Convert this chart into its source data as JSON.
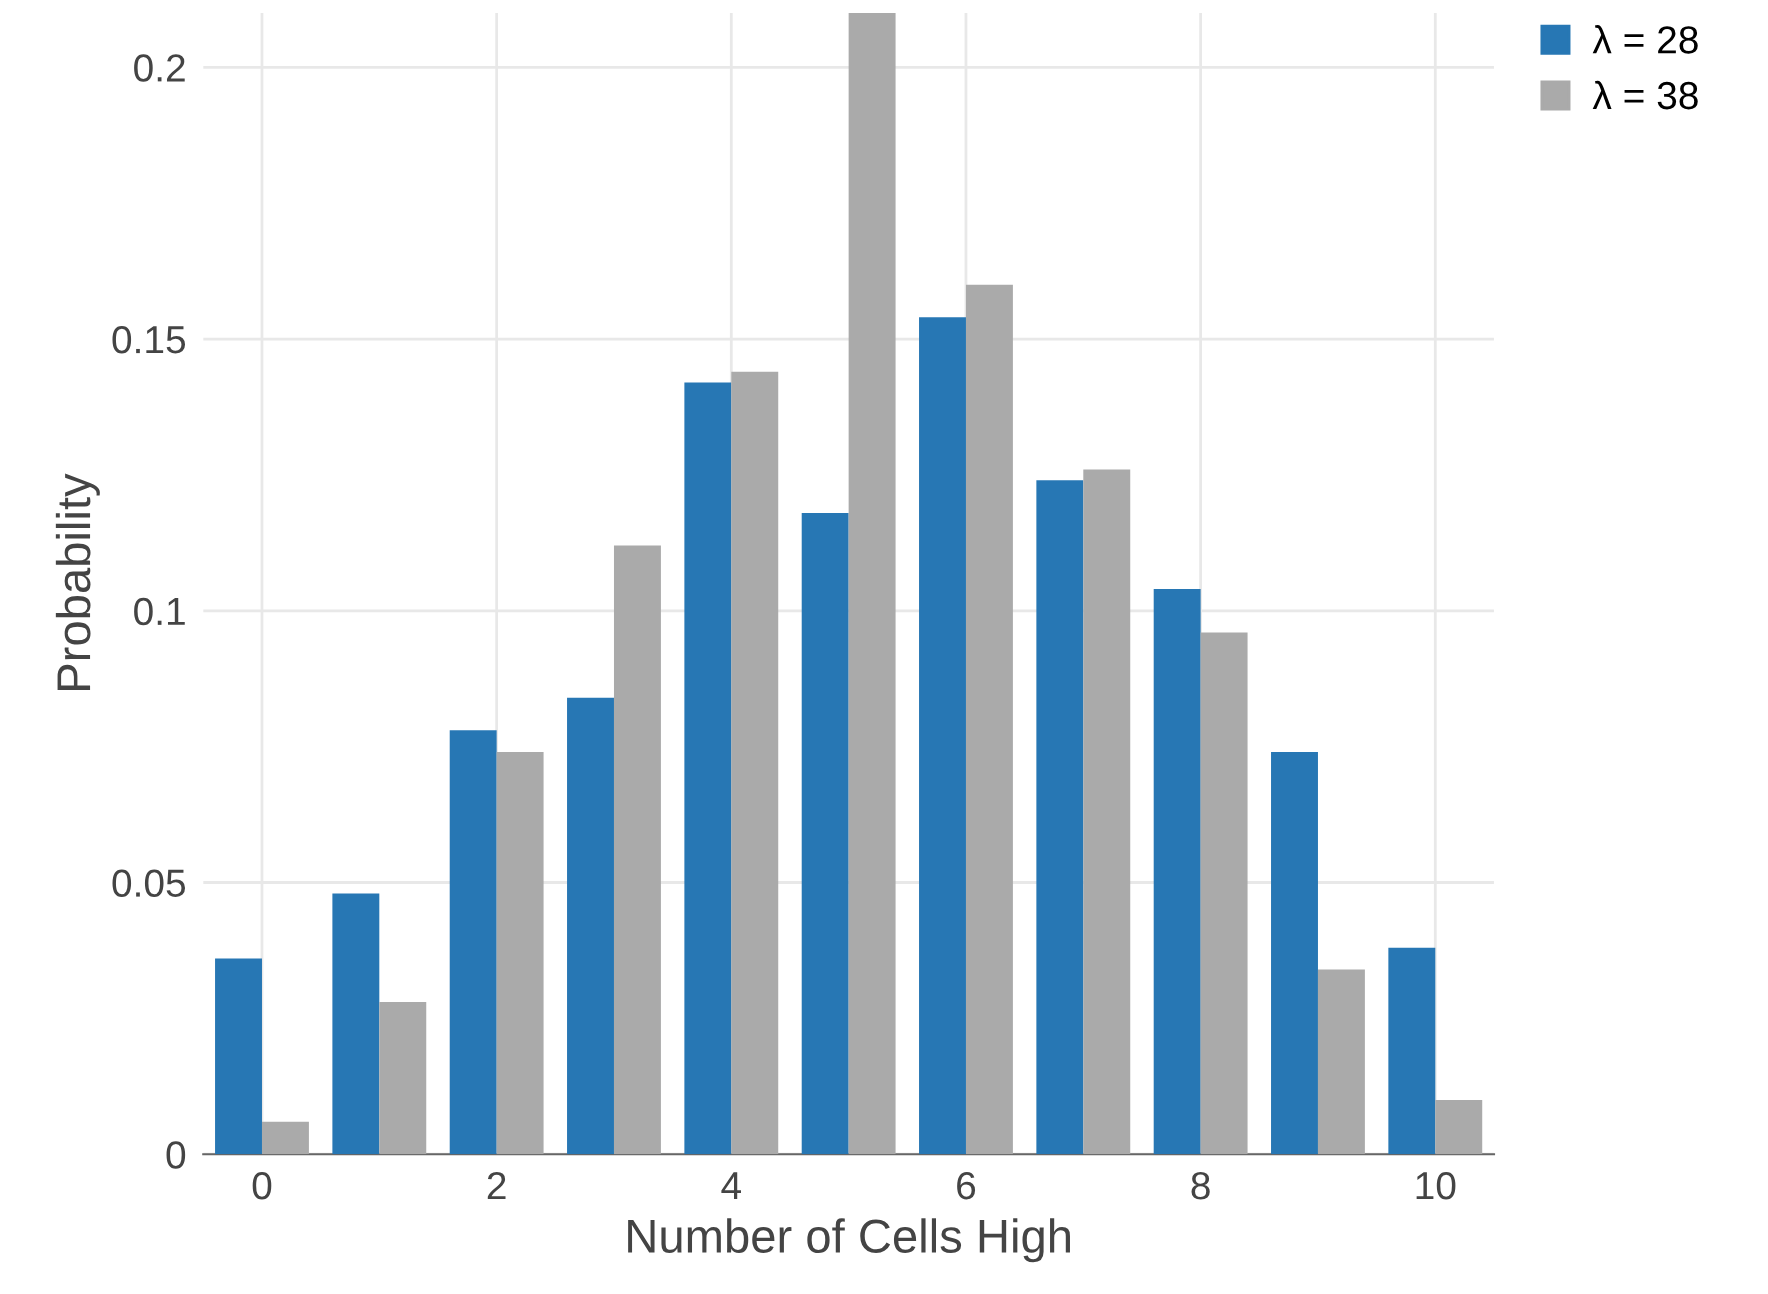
{
  "chart_data": {
    "type": "bar",
    "xlabel": "Number of Cells High",
    "ylabel": "Probability",
    "x": [
      0,
      1,
      2,
      3,
      4,
      5,
      6,
      7,
      8,
      9,
      10
    ],
    "series": [
      {
        "name": "λ = 28",
        "color": "#2777b4",
        "values": [
          0.036,
          0.048,
          0.078,
          0.084,
          0.142,
          0.118,
          0.154,
          0.124,
          0.104,
          0.074,
          0.038
        ]
      },
      {
        "name": "λ = 38",
        "color": "#aaaaaa",
        "values": [
          0.006,
          0.028,
          0.074,
          0.112,
          0.144,
          0.21,
          0.16,
          0.126,
          0.096,
          0.034,
          0.01
        ]
      }
    ],
    "xlim": [
      -0.5,
      10.5
    ],
    "xticks": [
      0,
      2,
      4,
      6,
      8,
      10
    ],
    "ylim": [
      0,
      0.21
    ],
    "yticks": [
      0,
      0.05,
      0.1,
      0.15,
      0.2
    ],
    "grid": true,
    "legend": "top right"
  }
}
